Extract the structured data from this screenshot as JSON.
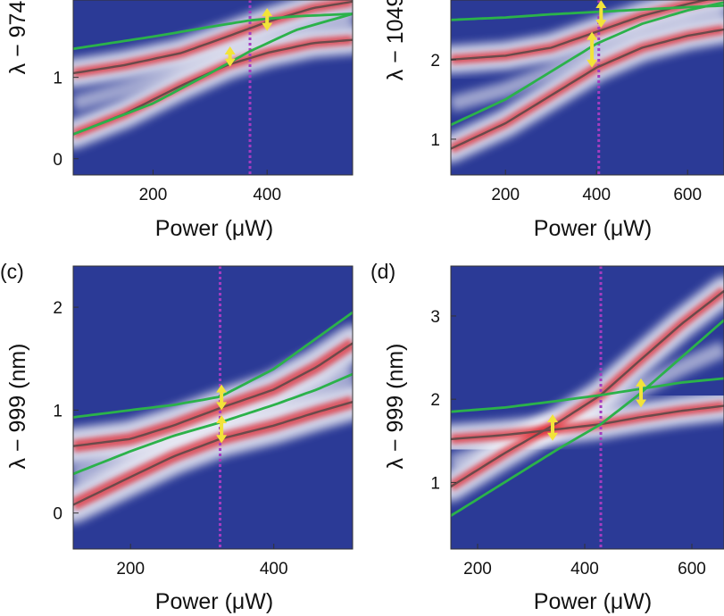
{
  "colors": {
    "background": "#2b3a96",
    "band_white": "#eeeef6",
    "band_red": "#e0202a",
    "guide_line": "#a43cc0",
    "green_curve": "#2bb24a",
    "dark_curve": "#6b4a4a",
    "arrow": "#f2e33a"
  },
  "chart_data": [
    {
      "panel_label": "",
      "type": "heatmap",
      "xlabel": "Power (μW)",
      "ylabel": "λ − 974",
      "xlim": [
        60,
        550
      ],
      "ylim": [
        -0.2,
        1.95
      ],
      "xticks": [
        200,
        400
      ],
      "yticks": [
        0,
        1
      ],
      "vline": 370,
      "lower_lbp": {
        "name": "",
        "x": [
          60,
          150,
          250,
          330,
          400,
          480,
          550
        ],
        "y": [
          0.3,
          0.55,
          0.9,
          1.15,
          1.3,
          1.42,
          1.46
        ]
      },
      "upper_lbp": {
        "name": "",
        "x": [
          60,
          150,
          250,
          330,
          400,
          480,
          550
        ],
        "y": [
          1.05,
          1.15,
          1.3,
          1.5,
          1.68,
          1.85,
          1.93
        ]
      },
      "green_curves": [
        {
          "x": [
            60,
            200,
            300,
            370,
            450,
            550
          ],
          "y": [
            0.3,
            0.68,
            1.05,
            1.32,
            1.58,
            1.78
          ]
        },
        {
          "x": [
            60,
            200,
            300,
            370,
            450,
            550
          ],
          "y": [
            1.35,
            1.5,
            1.62,
            1.7,
            1.75,
            1.78
          ]
        }
      ],
      "arrows": [
        {
          "x": 335,
          "y_from": 1.13,
          "y_to": 1.38
        },
        {
          "x": 400,
          "y_from": 1.57,
          "y_to": 1.85
        }
      ]
    },
    {
      "panel_label": "",
      "type": "heatmap",
      "xlabel": "Power (μW)",
      "ylabel": "λ − 1049",
      "xlim": [
        80,
        680
      ],
      "ylim": [
        0.55,
        2.75
      ],
      "xticks": [
        200,
        400,
        600
      ],
      "yticks": [
        1,
        2
      ],
      "vline": 405,
      "lower_lbp": {
        "name": "",
        "x": [
          80,
          200,
          300,
          400,
          500,
          600,
          680
        ],
        "y": [
          0.88,
          1.2,
          1.55,
          1.9,
          2.15,
          2.3,
          2.38
        ]
      },
      "upper_lbp": {
        "name": "",
        "x": [
          80,
          200,
          300,
          400,
          500,
          600,
          680
        ],
        "y": [
          2.0,
          2.05,
          2.15,
          2.35,
          2.55,
          2.7,
          2.8
        ]
      },
      "green_curves": [
        {
          "x": [
            80,
            200,
            300,
            400,
            500,
            600,
            680
          ],
          "y": [
            1.18,
            1.5,
            1.85,
            2.2,
            2.45,
            2.62,
            2.72
          ]
        },
        {
          "x": [
            80,
            200,
            300,
            400,
            500,
            600,
            680
          ],
          "y": [
            2.5,
            2.53,
            2.57,
            2.6,
            2.63,
            2.66,
            2.68
          ]
        }
      ],
      "arrows": [
        {
          "x": 390,
          "y_from": 1.9,
          "y_to": 2.35
        },
        {
          "x": 410,
          "y_from": 2.4,
          "y_to": 2.75
        }
      ]
    },
    {
      "panel_label": "(c)",
      "type": "heatmap",
      "xlabel": "Power (μW)",
      "ylabel": "λ − 999 (nm)",
      "xlim": [
        120,
        510
      ],
      "ylim": [
        -0.35,
        2.4
      ],
      "xticks": [
        200,
        400
      ],
      "yticks": [
        0,
        1,
        2
      ],
      "vline": 325,
      "lower_lbp": {
        "name": "",
        "x": [
          120,
          200,
          260,
          325,
          400,
          460,
          510
        ],
        "y": [
          0.08,
          0.35,
          0.55,
          0.72,
          0.85,
          0.98,
          1.08
        ]
      },
      "upper_lbp": {
        "name": "",
        "x": [
          120,
          200,
          260,
          325,
          400,
          460,
          510
        ],
        "y": [
          0.65,
          0.72,
          0.85,
          1.02,
          1.2,
          1.42,
          1.65
        ]
      },
      "green_curves": [
        {
          "x": [
            120,
            200,
            260,
            325,
            400,
            460,
            510
          ],
          "y": [
            0.38,
            0.6,
            0.75,
            0.88,
            1.05,
            1.2,
            1.35
          ]
        },
        {
          "x": [
            120,
            200,
            260,
            325,
            400,
            460,
            510
          ],
          "y": [
            0.93,
            1.0,
            1.05,
            1.13,
            1.4,
            1.7,
            1.95
          ]
        }
      ],
      "arrows": [
        {
          "x": 327,
          "y_from": 0.68,
          "y_to": 0.95
        },
        {
          "x": 327,
          "y_from": 1.0,
          "y_to": 1.25
        }
      ]
    },
    {
      "panel_label": "(d)",
      "type": "heatmap",
      "xlabel": "Power (μW)",
      "ylabel": "λ − 999 (nm)",
      "xlim": [
        150,
        660
      ],
      "ylim": [
        0.2,
        3.6
      ],
      "xticks": [
        200,
        400,
        600
      ],
      "yticks": [
        1,
        2,
        3
      ],
      "vline": 430,
      "lower_lbp": {
        "name": "",
        "x": [
          150,
          250,
          350,
          430,
          500,
          580,
          660
        ],
        "y": [
          1.52,
          1.57,
          1.64,
          1.7,
          1.78,
          1.86,
          1.92
        ]
      },
      "upper_lbp": {
        "name": "",
        "x": [
          150,
          250,
          350,
          430,
          500,
          580,
          660
        ],
        "y": [
          0.95,
          1.35,
          1.72,
          2.05,
          2.45,
          2.9,
          3.3
        ]
      },
      "green_curves": [
        {
          "x": [
            150,
            250,
            350,
            430,
            500,
            580,
            660
          ],
          "y": [
            0.6,
            1.0,
            1.4,
            1.7,
            2.05,
            2.5,
            2.95
          ]
        },
        {
          "x": [
            150,
            250,
            350,
            430,
            500,
            580,
            660
          ],
          "y": [
            1.85,
            1.9,
            1.98,
            2.05,
            2.12,
            2.2,
            2.25
          ]
        }
      ],
      "arrows": [
        {
          "x": 340,
          "y_from": 1.5,
          "y_to": 1.82
        },
        {
          "x": 505,
          "y_from": 1.9,
          "y_to": 2.25
        }
      ]
    }
  ]
}
